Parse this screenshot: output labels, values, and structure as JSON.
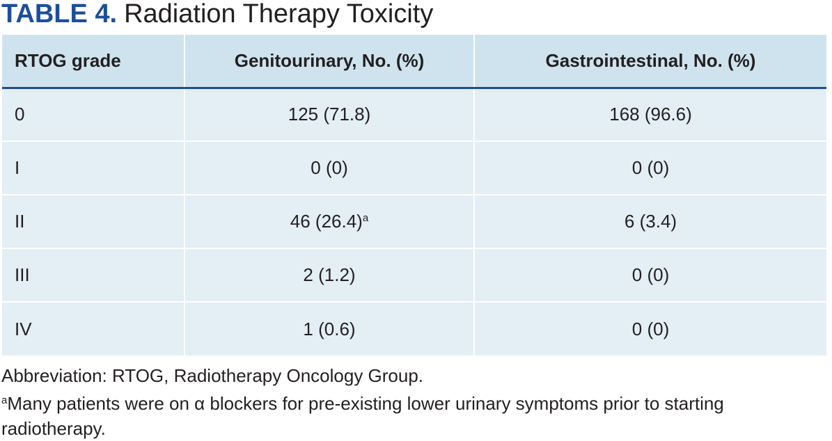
{
  "header": {
    "label": "TABLE 4.",
    "title": "Radiation Therapy Toxicity"
  },
  "table": {
    "columns": [
      "RTOG grade",
      "Genitourinary, No. (%)",
      "Gastrointestinal, No. (%)"
    ],
    "rows": [
      [
        "0",
        "125 (71.8)",
        "168 (96.6)"
      ],
      [
        "I",
        "0 (0)",
        "0 (0)"
      ],
      [
        "II",
        {
          "text": "46 (26.4)",
          "mark": "a"
        },
        "6 (3.4)"
      ],
      [
        "III",
        "2 (1.2)",
        "0 (0)"
      ],
      [
        "IV",
        "1 (0.6)",
        "0 (0)"
      ]
    ]
  },
  "footnotes": [
    {
      "text": "Abbreviation: RTOG, Radiotherapy Oncology Group."
    },
    {
      "mark": "a",
      "text": "Many patients were on α blockers for pre-existing lower urinary symptoms prior to starting radiotherapy."
    }
  ]
}
